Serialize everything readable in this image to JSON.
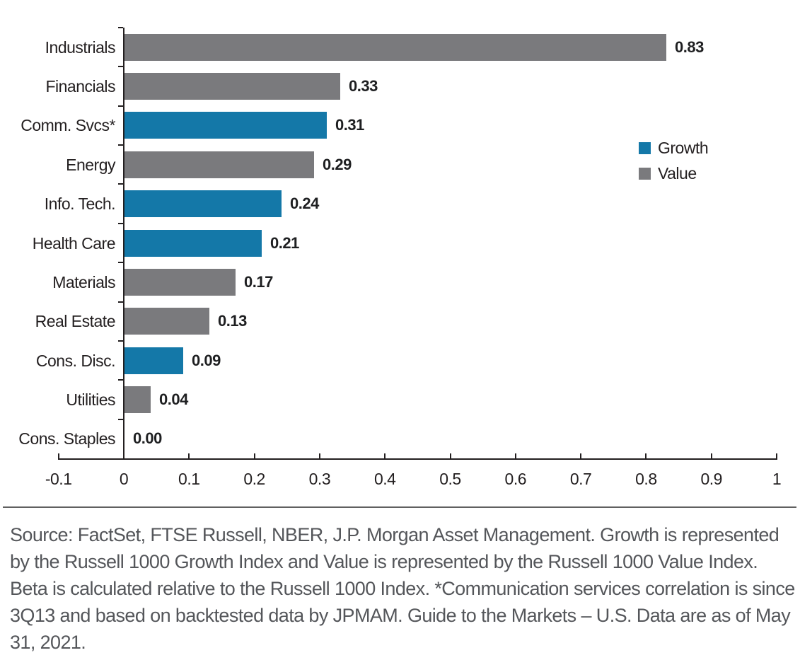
{
  "chart_data": {
    "type": "bar",
    "orientation": "horizontal",
    "title": "",
    "xlabel": "",
    "ylabel": "",
    "xlim": [
      -0.1,
      1
    ],
    "grid": false,
    "categories": [
      "Industrials",
      "Financials",
      "Comm. Svcs*",
      "Energy",
      "Info. Tech.",
      "Health Care",
      "Materials",
      "Real Estate",
      "Cons. Disc.",
      "Utilities",
      "Cons. Staples"
    ],
    "values": [
      0.83,
      0.33,
      0.31,
      0.29,
      0.24,
      0.21,
      0.17,
      0.13,
      0.09,
      0.04,
      0.0
    ],
    "value_labels": [
      "0.83",
      "0.33",
      "0.31",
      "0.29",
      "0.24",
      "0.21",
      "0.17",
      "0.13",
      "0.09",
      "0.04",
      "0.00"
    ],
    "bar_groups": [
      "Value",
      "Value",
      "Growth",
      "Value",
      "Growth",
      "Growth",
      "Value",
      "Value",
      "Growth",
      "Value",
      "Value"
    ],
    "x_tick_labels": [
      "-0.1",
      "0",
      "0.1",
      "0.2",
      "0.3",
      "0.4",
      "0.5",
      "0.6",
      "0.7",
      "0.8",
      "0.9",
      "1"
    ],
    "legend": {
      "position": "right",
      "entries": [
        {
          "label": "Growth",
          "color": "#1478a8"
        },
        {
          "label": "Value",
          "color": "#7a7a7d"
        }
      ]
    },
    "colors": {
      "axis": "#231f20",
      "value_label": "#1e1f21",
      "category_label": "#231f20"
    }
  },
  "footer": {
    "source_text": "Source: FactSet, FTSE Russell, NBER, J.P. Morgan Asset Management. Growth is represented by the Russell 1000 Growth Index and Value is represented by the Russell 1000 Value Index. Beta is calculated relative to the Russell 1000 Index. *Communication services correlation is since 3Q13 and based on backtested data by JPMAM. Guide to the Markets – U.S. Data are as of May 31, 2021."
  }
}
